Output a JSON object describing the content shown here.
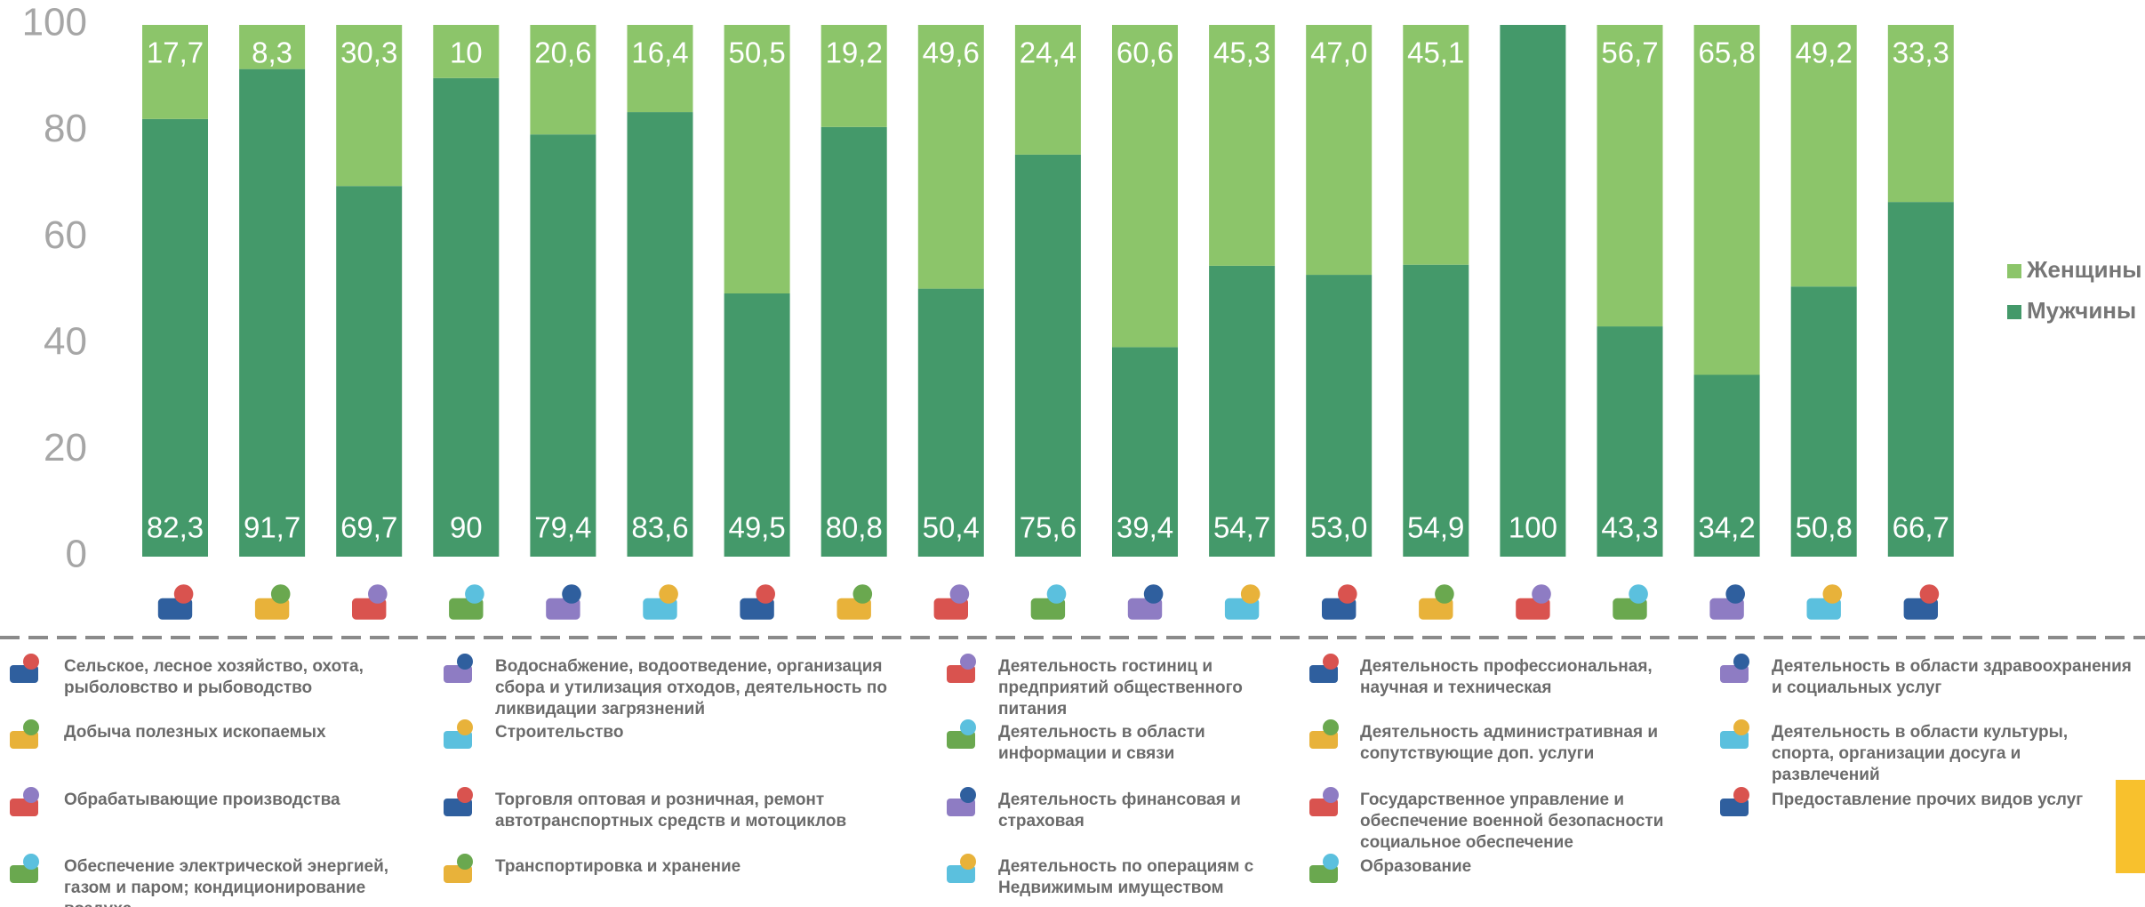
{
  "chart_data": {
    "type": "bar",
    "stacked": true,
    "categories": [
      "Сельское, лесное хозяйство, охота, рыболовство и рыбоводство",
      "Добыча полезных ископаемых",
      "Обрабатывающие производства",
      "Обеспечение электрической энергией, газом и паром; кондиционирование воздуха",
      "Водоснабжение, водоотведение, организация сбора и утилизация отходов, деятельность по ликвидации загрязнений",
      "Строительство",
      "Торговля оптовая и розничная, ремонт автотранспортных средств и мотоциклов",
      "Транспортировка и хранение",
      "Деятельность гостиниц и предприятий общественного питания",
      "Деятельность в области информации и связи",
      "Деятельность финансовая и страховая",
      "Деятельность по операциям с Недвижимым имуществом",
      "Деятельность профессиональная, научная и техническая",
      "Деятельность административная и сопутствующие доп. услуги",
      "Государственное управление и обеспечение военной безопасности социальное обеспечение",
      "Образование",
      "Деятельность в области здравоохранения и социальных услуг",
      "Деятельность в области культуры, спорта, организации досуга и развлечений",
      "Предоставление прочих видов услуг"
    ],
    "series": [
      {
        "name": "Мужчины",
        "color": "#44996a",
        "values": [
          82.3,
          91.7,
          69.7,
          90,
          79.4,
          83.6,
          49.5,
          80.8,
          50.4,
          75.6,
          39.4,
          54.7,
          53.0,
          54.9,
          100,
          43.3,
          34.2,
          50.8,
          66.7
        ],
        "value_labels": [
          "82,3",
          "91,7",
          "69,7",
          "90",
          "79,4",
          "83,6",
          "49,5",
          "80,8",
          "50,4",
          "75,6",
          "39,4",
          "54,7",
          "53,0",
          "54,9",
          "100",
          "43,3",
          "34,2",
          "50,8",
          "66,7"
        ]
      },
      {
        "name": "Женщины",
        "color": "#8cc56a",
        "values": [
          17.7,
          8.3,
          30.3,
          10,
          20.6,
          16.4,
          50.5,
          19.2,
          49.6,
          24.4,
          60.6,
          45.3,
          47.0,
          45.1,
          0,
          56.7,
          65.8,
          49.2,
          33.3
        ],
        "value_labels": [
          "17,7",
          "8,3",
          "30,3",
          "10",
          "20,6",
          "16,4",
          "50,5",
          "19,2",
          "49,6",
          "24,4",
          "60,6",
          "45,3",
          "47,0",
          "45,1",
          null,
          "56,7",
          "65,8",
          "49,2",
          "33,3"
        ]
      }
    ],
    "ylim": [
      0,
      100
    ],
    "yticks": [
      0,
      20,
      40,
      60,
      80,
      100
    ],
    "legend": "right"
  }
}
